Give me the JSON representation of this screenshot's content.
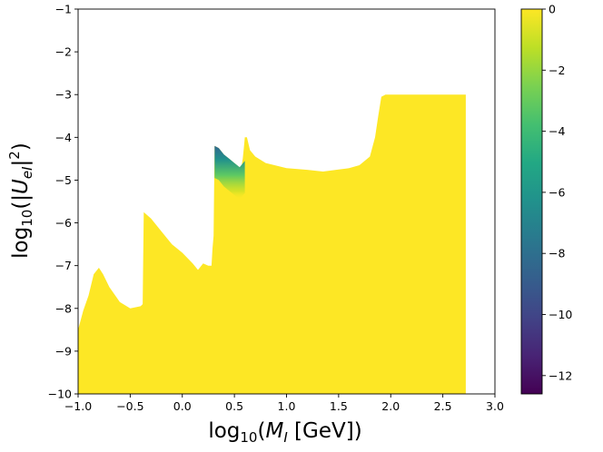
{
  "chart_data": {
    "type": "heatmap",
    "title": "",
    "xlabel": {
      "prefix": "log",
      "sub": "10",
      "open": "(",
      "italic": "M",
      "italic_sub": "I",
      "rest": " [GeV])"
    },
    "ylabel": {
      "prefix": "log",
      "sub": "10",
      "open": "(|",
      "italic": "U",
      "italic_sub": "eI",
      "close": "|",
      "sup": "2",
      "end": ")"
    },
    "xlim": [
      -1.0,
      3.0
    ],
    "ylim": [
      -10,
      -1
    ],
    "xticks": [
      "−1.0",
      "−0.5",
      "0.0",
      "0.5",
      "1.0",
      "1.5",
      "2.0",
      "2.5",
      "3.0"
    ],
    "xtick_values": [
      -1.0,
      -0.5,
      0.0,
      0.5,
      1.0,
      1.5,
      2.0,
      2.5,
      3.0
    ],
    "yticks": [
      "−1",
      "−2",
      "−3",
      "−4",
      "−5",
      "−6",
      "−7",
      "−8",
      "−9",
      "−10"
    ],
    "ytick_values": [
      -1,
      -2,
      -3,
      -4,
      -5,
      -6,
      -7,
      -8,
      -9,
      -10
    ],
    "colorbar": {
      "colormap": "viridis",
      "range": [
        -12.6,
        0
      ],
      "ticks": [
        "0",
        "−2",
        "−4",
        "−6",
        "−8",
        "−10",
        "−12"
      ],
      "tick_values": [
        0,
        -2,
        -4,
        -6,
        -8,
        -10,
        -12
      ]
    },
    "fill_color": "#fde725",
    "region_boundary": [
      [
        -1.0,
        -8.5
      ],
      [
        -0.95,
        -8.05
      ],
      [
        -0.9,
        -7.7
      ],
      [
        -0.85,
        -7.2
      ],
      [
        -0.8,
        -7.05
      ],
      [
        -0.76,
        -7.2
      ],
      [
        -0.7,
        -7.5
      ],
      [
        -0.6,
        -7.85
      ],
      [
        -0.5,
        -8.0
      ],
      [
        -0.4,
        -7.95
      ],
      [
        -0.38,
        -7.9
      ],
      [
        -0.37,
        -5.75
      ],
      [
        -0.3,
        -5.9
      ],
      [
        -0.2,
        -6.2
      ],
      [
        -0.1,
        -6.5
      ],
      [
        0.0,
        -6.7
      ],
      [
        0.1,
        -6.95
      ],
      [
        0.15,
        -7.1
      ],
      [
        0.2,
        -6.95
      ],
      [
        0.25,
        -7.0
      ],
      [
        0.28,
        -7.0
      ],
      [
        0.29,
        -6.6
      ],
      [
        0.3,
        -6.3
      ],
      [
        0.31,
        -4.2
      ],
      [
        0.35,
        -4.25
      ],
      [
        0.4,
        -4.4
      ],
      [
        0.45,
        -4.5
      ],
      [
        0.5,
        -4.6
      ],
      [
        0.55,
        -4.7
      ],
      [
        0.57,
        -4.65
      ],
      [
        0.58,
        -4.5
      ],
      [
        0.59,
        -4.25
      ],
      [
        0.6,
        -4.0
      ],
      [
        0.62,
        -4.0
      ],
      [
        0.65,
        -4.3
      ],
      [
        0.7,
        -4.45
      ],
      [
        0.8,
        -4.6
      ],
      [
        1.0,
        -4.72
      ],
      [
        1.2,
        -4.76
      ],
      [
        1.35,
        -4.8
      ],
      [
        1.5,
        -4.75
      ],
      [
        1.6,
        -4.72
      ],
      [
        1.7,
        -4.65
      ],
      [
        1.8,
        -4.45
      ],
      [
        1.85,
        -4.0
      ],
      [
        1.88,
        -3.5
      ],
      [
        1.91,
        -3.05
      ],
      [
        1.95,
        -3.0
      ],
      [
        2.2,
        -3.0
      ],
      [
        2.5,
        -3.0
      ],
      [
        2.72,
        -3.0
      ],
      [
        2.72,
        -10.0
      ],
      [
        -1.0,
        -10.0
      ]
    ],
    "low_region": {
      "description": "gradient band near upper edge between log10(M) 0.31 and 0.6",
      "top_edge": [
        [
          0.31,
          -4.2
        ],
        [
          0.35,
          -4.25
        ],
        [
          0.4,
          -4.4
        ],
        [
          0.45,
          -4.5
        ],
        [
          0.5,
          -4.6
        ],
        [
          0.55,
          -4.7
        ],
        [
          0.6,
          -4.55
        ]
      ],
      "band_depth": 0.75,
      "min_value": -10,
      "max_value": 0
    }
  }
}
